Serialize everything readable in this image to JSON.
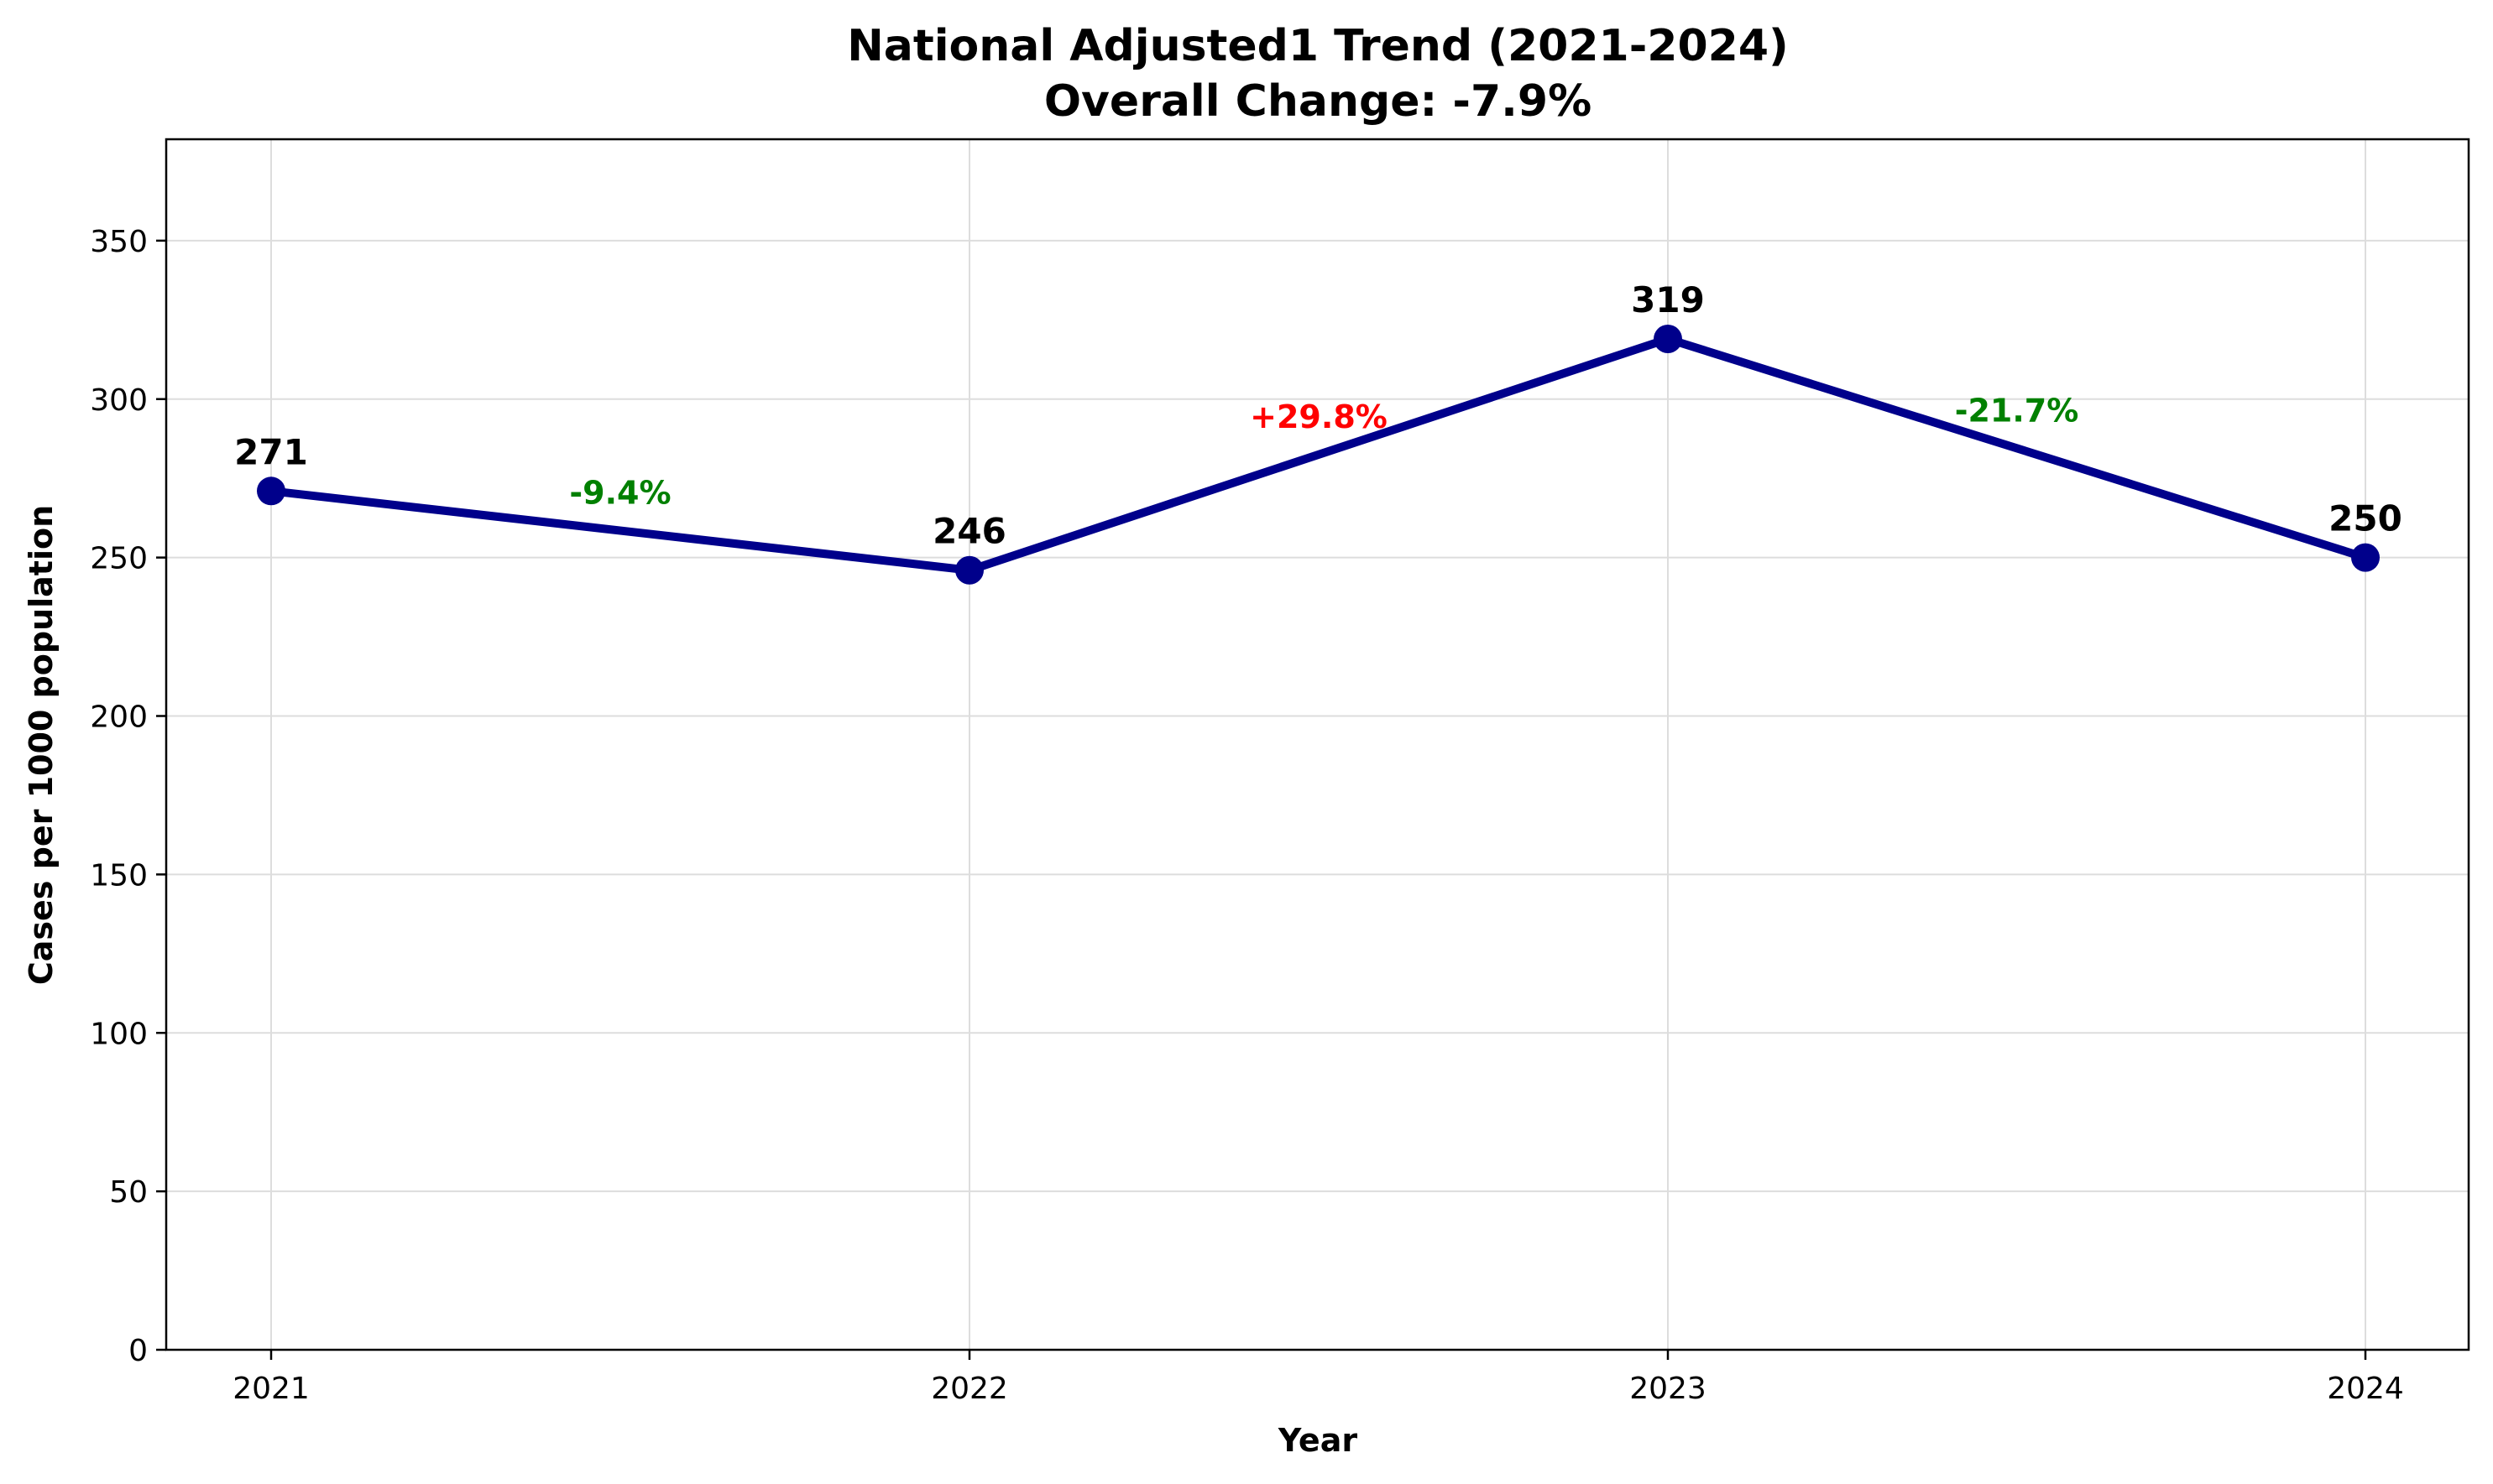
{
  "chart_data": {
    "type": "line",
    "title_line1": "National Adjusted1 Trend (2021-2024)",
    "title_line2": "Overall Change: -7.9%",
    "xlabel": "Year",
    "ylabel": "Cases per 1000 population",
    "x": [
      "2021",
      "2022",
      "2023",
      "2024"
    ],
    "values": [
      271,
      246,
      319,
      250
    ],
    "value_labels": [
      "271",
      "246",
      "319",
      "250"
    ],
    "changes": [
      {
        "label": "-9.4%",
        "color": "#008000"
      },
      {
        "label": "+29.8%",
        "color": "#ff0000"
      },
      {
        "label": "-21.7%",
        "color": "#008000"
      }
    ],
    "ylim": [
      0,
      382
    ],
    "yticks": [
      0,
      50,
      100,
      150,
      200,
      250,
      300,
      350
    ],
    "ytick_labels": [
      "0",
      "50",
      "100",
      "150",
      "200",
      "250",
      "300",
      "350"
    ],
    "grid": true,
    "line_color": "#00008b",
    "marker_color": "#00008b"
  }
}
